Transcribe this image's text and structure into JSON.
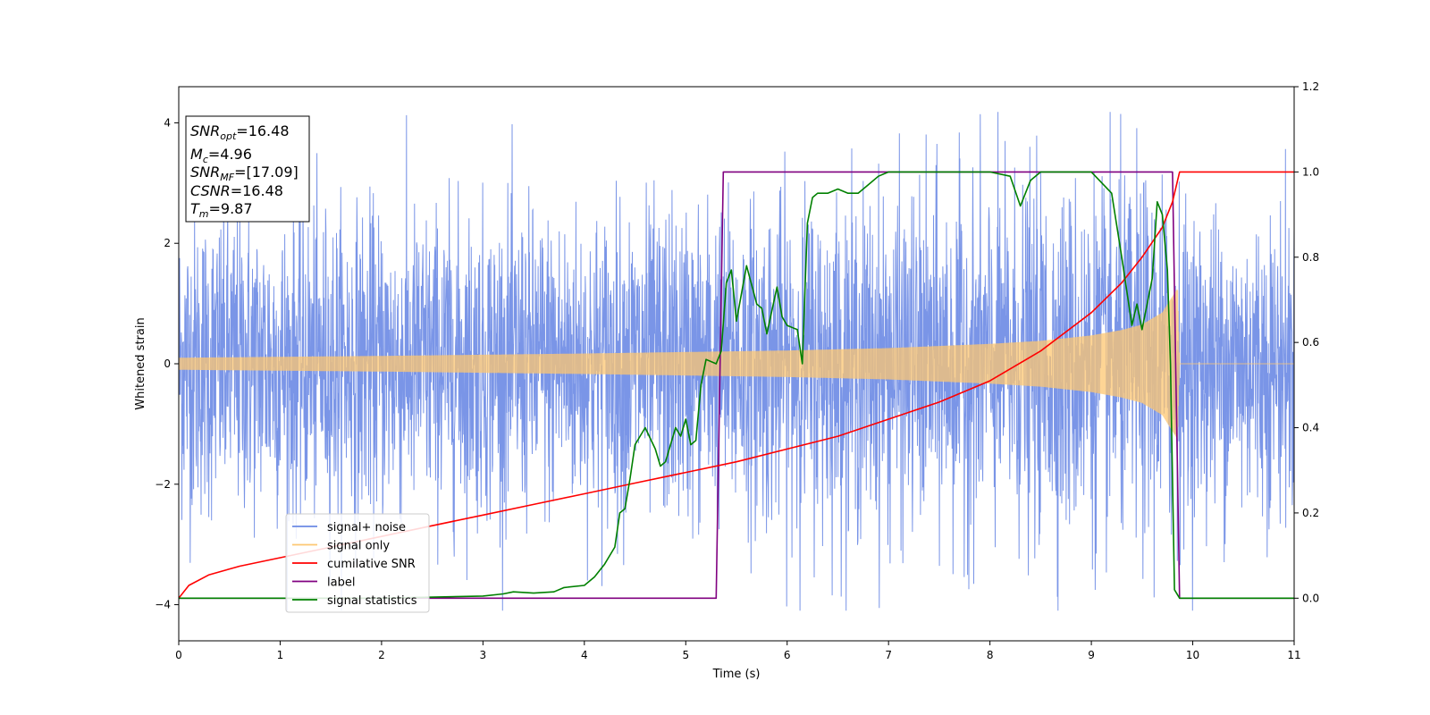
{
  "chart_data": {
    "type": "line",
    "xlabel": "Time (s)",
    "ylabel": "Whitened strain",
    "xlim": [
      0,
      11
    ],
    "ylim": [
      -4.6,
      4.6
    ],
    "y2lim": [
      -0.1,
      1.2
    ],
    "x_ticks": [
      "0",
      "1",
      "2",
      "3",
      "4",
      "5",
      "6",
      "7",
      "8",
      "9",
      "10",
      "11"
    ],
    "x_tick_values": [
      0,
      1,
      2,
      3,
      4,
      5,
      6,
      7,
      8,
      9,
      10,
      11
    ],
    "y_ticks": [
      "−4",
      "−2",
      "0",
      "2",
      "4"
    ],
    "y_tick_values": [
      -4,
      -2,
      0,
      2,
      4
    ],
    "y2_ticks": [
      "0.0",
      "0.2",
      "0.4",
      "0.6",
      "0.8",
      "1.0",
      "1.2"
    ],
    "y2_tick_values": [
      0.0,
      0.2,
      0.4,
      0.6,
      0.8,
      1.0,
      1.2
    ],
    "grid": false,
    "legend_position": "lower-left",
    "info_box": {
      "snr_opt": "16.48",
      "mc": "4.96",
      "snr_mf": "[17.09]",
      "csnr": "16.48",
      "tm": "9.87"
    },
    "series": [
      {
        "name": "signal+ noise",
        "color": "#6c8ae4",
        "axis": "left",
        "style": "noise band",
        "envelope_x": [
          0,
          1,
          2,
          3,
          4,
          5,
          6,
          7,
          8,
          9,
          9.85,
          9.9,
          11
        ],
        "envelope_upper": [
          3.0,
          3.0,
          3.0,
          3.0,
          3.0,
          3.1,
          3.2,
          3.3,
          3.4,
          3.5,
          3.6,
          3.0,
          3.0
        ],
        "envelope_lower": [
          -3.0,
          -3.0,
          -3.0,
          -3.0,
          -3.0,
          -3.1,
          -3.2,
          -3.3,
          -3.4,
          -3.5,
          -3.6,
          -3.0,
          -3.0
        ],
        "max_spike": 4.18,
        "min_spike": -4.1
      },
      {
        "name": "signal only",
        "color": "#fdc772",
        "axis": "left",
        "style": "chirp",
        "x": [
          0,
          2,
          4,
          6,
          7,
          8,
          8.5,
          9,
          9.3,
          9.5,
          9.7,
          9.85,
          9.87,
          11
        ],
        "amplitude": [
          0.1,
          0.13,
          0.17,
          0.22,
          0.26,
          0.33,
          0.38,
          0.47,
          0.56,
          0.65,
          0.85,
          1.25,
          0.0,
          0.0
        ]
      },
      {
        "name": "cumilative SNR",
        "color": "#ff0000",
        "axis": "right",
        "x": [
          0,
          0.1,
          0.3,
          0.6,
          1,
          1.5,
          2,
          2.5,
          3,
          3.5,
          4,
          4.5,
          5,
          5.5,
          6,
          6.5,
          7,
          7.5,
          8,
          8.5,
          9,
          9.3,
          9.5,
          9.7,
          9.8,
          9.87,
          11
        ],
        "values": [
          0.0,
          0.03,
          0.055,
          0.075,
          0.095,
          0.12,
          0.145,
          0.17,
          0.195,
          0.22,
          0.245,
          0.27,
          0.295,
          0.32,
          0.35,
          0.38,
          0.42,
          0.46,
          0.51,
          0.58,
          0.67,
          0.74,
          0.8,
          0.87,
          0.93,
          1.0,
          1.0
        ]
      },
      {
        "name": "label",
        "color": "#800080",
        "axis": "right",
        "x": [
          0,
          5.3,
          5.37,
          9.8,
          9.87,
          11
        ],
        "values": [
          0,
          0,
          1,
          1,
          0,
          0
        ]
      },
      {
        "name": "signal statistics",
        "color": "#008000",
        "axis": "right",
        "x": [
          0,
          2.0,
          3.0,
          3.2,
          3.3,
          3.5,
          3.7,
          3.8,
          4.0,
          4.1,
          4.2,
          4.3,
          4.35,
          4.4,
          4.45,
          4.5,
          4.6,
          4.7,
          4.75,
          4.8,
          4.9,
          4.95,
          5.0,
          5.05,
          5.1,
          5.15,
          5.2,
          5.3,
          5.35,
          5.4,
          5.45,
          5.5,
          5.6,
          5.7,
          5.75,
          5.8,
          5.9,
          5.95,
          6.0,
          6.1,
          6.15,
          6.2,
          6.25,
          6.3,
          6.4,
          6.5,
          6.6,
          6.7,
          6.8,
          6.9,
          7.0,
          7.2,
          7.5,
          8.0,
          8.2,
          8.3,
          8.4,
          8.5,
          8.7,
          9.0,
          9.2,
          9.3,
          9.4,
          9.45,
          9.5,
          9.6,
          9.65,
          9.7,
          9.75,
          9.78,
          9.82,
          9.87,
          10,
          11
        ],
        "values": [
          0.0,
          0.0,
          0.005,
          0.01,
          0.015,
          0.012,
          0.015,
          0.025,
          0.03,
          0.05,
          0.08,
          0.12,
          0.2,
          0.21,
          0.28,
          0.36,
          0.4,
          0.35,
          0.31,
          0.32,
          0.4,
          0.38,
          0.42,
          0.36,
          0.37,
          0.5,
          0.56,
          0.55,
          0.58,
          0.74,
          0.77,
          0.65,
          0.78,
          0.69,
          0.68,
          0.62,
          0.73,
          0.66,
          0.64,
          0.63,
          0.55,
          0.88,
          0.94,
          0.95,
          0.95,
          0.96,
          0.95,
          0.95,
          0.97,
          0.99,
          1.0,
          1.0,
          1.0,
          1.0,
          0.99,
          0.92,
          0.98,
          1.0,
          1.0,
          1.0,
          0.95,
          0.8,
          0.64,
          0.69,
          0.63,
          0.75,
          0.93,
          0.9,
          0.77,
          0.55,
          0.02,
          0.0,
          0.0,
          0.0
        ]
      }
    ]
  }
}
